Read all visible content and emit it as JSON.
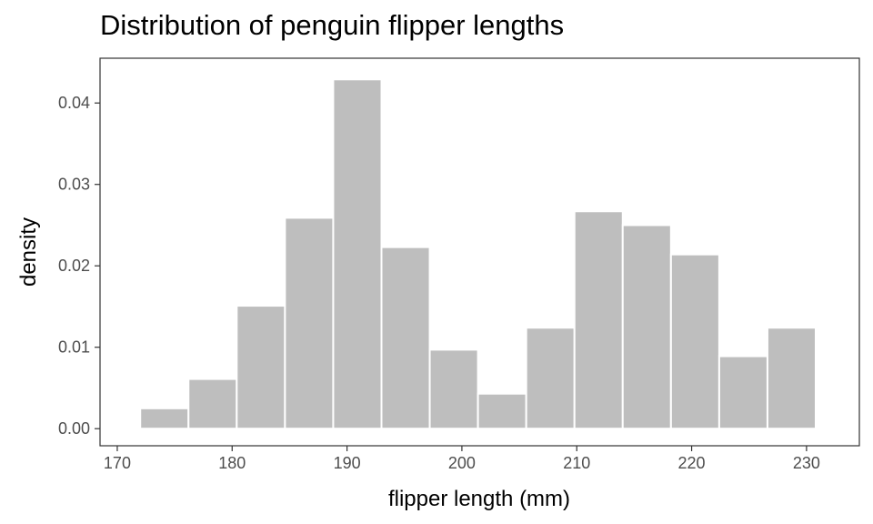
{
  "chart_data": {
    "type": "bar",
    "title": "Distribution of penguin flipper lengths",
    "xlabel": "flipper length (mm)",
    "ylabel": "density",
    "xlim": [
      168.5,
      234.6
    ],
    "ylim": [
      -0.0021,
      0.0455
    ],
    "x_ticks": [
      170,
      180,
      190,
      200,
      210,
      220,
      230
    ],
    "y_ticks": [
      0.0,
      0.01,
      0.02,
      0.03,
      0.04
    ],
    "y_tick_labels": [
      "0.00",
      "0.01",
      "0.02",
      "0.03",
      "0.04"
    ],
    "grid": false,
    "bar_color": "#bebebe",
    "bins": [
      {
        "x0": 172.0,
        "x1": 176.2,
        "density": 0.0025
      },
      {
        "x0": 176.2,
        "x1": 180.4,
        "density": 0.0061
      },
      {
        "x0": 180.4,
        "x1": 184.6,
        "density": 0.0151
      },
      {
        "x0": 184.6,
        "x1": 188.8,
        "density": 0.0259
      },
      {
        "x0": 188.8,
        "x1": 193.0,
        "density": 0.0429
      },
      {
        "x0": 193.0,
        "x1": 197.2,
        "density": 0.0223
      },
      {
        "x0": 197.2,
        "x1": 201.4,
        "density": 0.0097
      },
      {
        "x0": 201.4,
        "x1": 205.6,
        "density": 0.0043
      },
      {
        "x0": 205.6,
        "x1": 209.8,
        "density": 0.0124
      },
      {
        "x0": 209.8,
        "x1": 214.0,
        "density": 0.0267
      },
      {
        "x0": 214.0,
        "x1": 218.2,
        "density": 0.025
      },
      {
        "x0": 218.2,
        "x1": 222.4,
        "density": 0.0214
      },
      {
        "x0": 222.4,
        "x1": 226.6,
        "density": 0.0089
      },
      {
        "x0": 226.6,
        "x1": 230.8,
        "density": 0.0124
      }
    ]
  }
}
